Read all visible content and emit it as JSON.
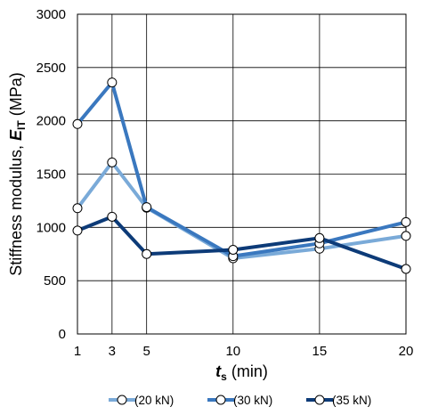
{
  "chart_data": {
    "type": "line",
    "title": "",
    "xlabel": {
      "main": "t",
      "sub": "s",
      "unit": " (min)"
    },
    "ylabel": {
      "main": "Stiffness modulus, ",
      "sym": "E",
      "sub": "IT",
      "unit": " (MPa)"
    },
    "x": [
      1,
      3,
      5,
      10,
      15,
      20
    ],
    "x_tick_labels": [
      "1",
      "3",
      "5",
      "10",
      "15",
      "20"
    ],
    "xlim": [
      1,
      20
    ],
    "ylim": [
      0,
      3000
    ],
    "y_ticks": [
      0,
      500,
      1000,
      1500,
      2000,
      2500,
      3000
    ],
    "y_tick_labels": [
      "0",
      "500",
      "1000",
      "1500",
      "2000",
      "2500",
      "3000"
    ],
    "grid": true,
    "legend_position": "bottom",
    "series": [
      {
        "name": "(20 kN)",
        "color": "#7aaad8",
        "values": [
          1180,
          1610,
          1185,
          710,
          800,
          920
        ]
      },
      {
        "name": "(30 kN)",
        "color": "#3a78bf",
        "values": [
          1970,
          2360,
          1190,
          730,
          850,
          1050
        ]
      },
      {
        "name": "(35 kN)",
        "color": "#0d3b78",
        "values": [
          970,
          1100,
          750,
          790,
          900,
          610
        ]
      }
    ],
    "marker": "hollow-circle"
  }
}
